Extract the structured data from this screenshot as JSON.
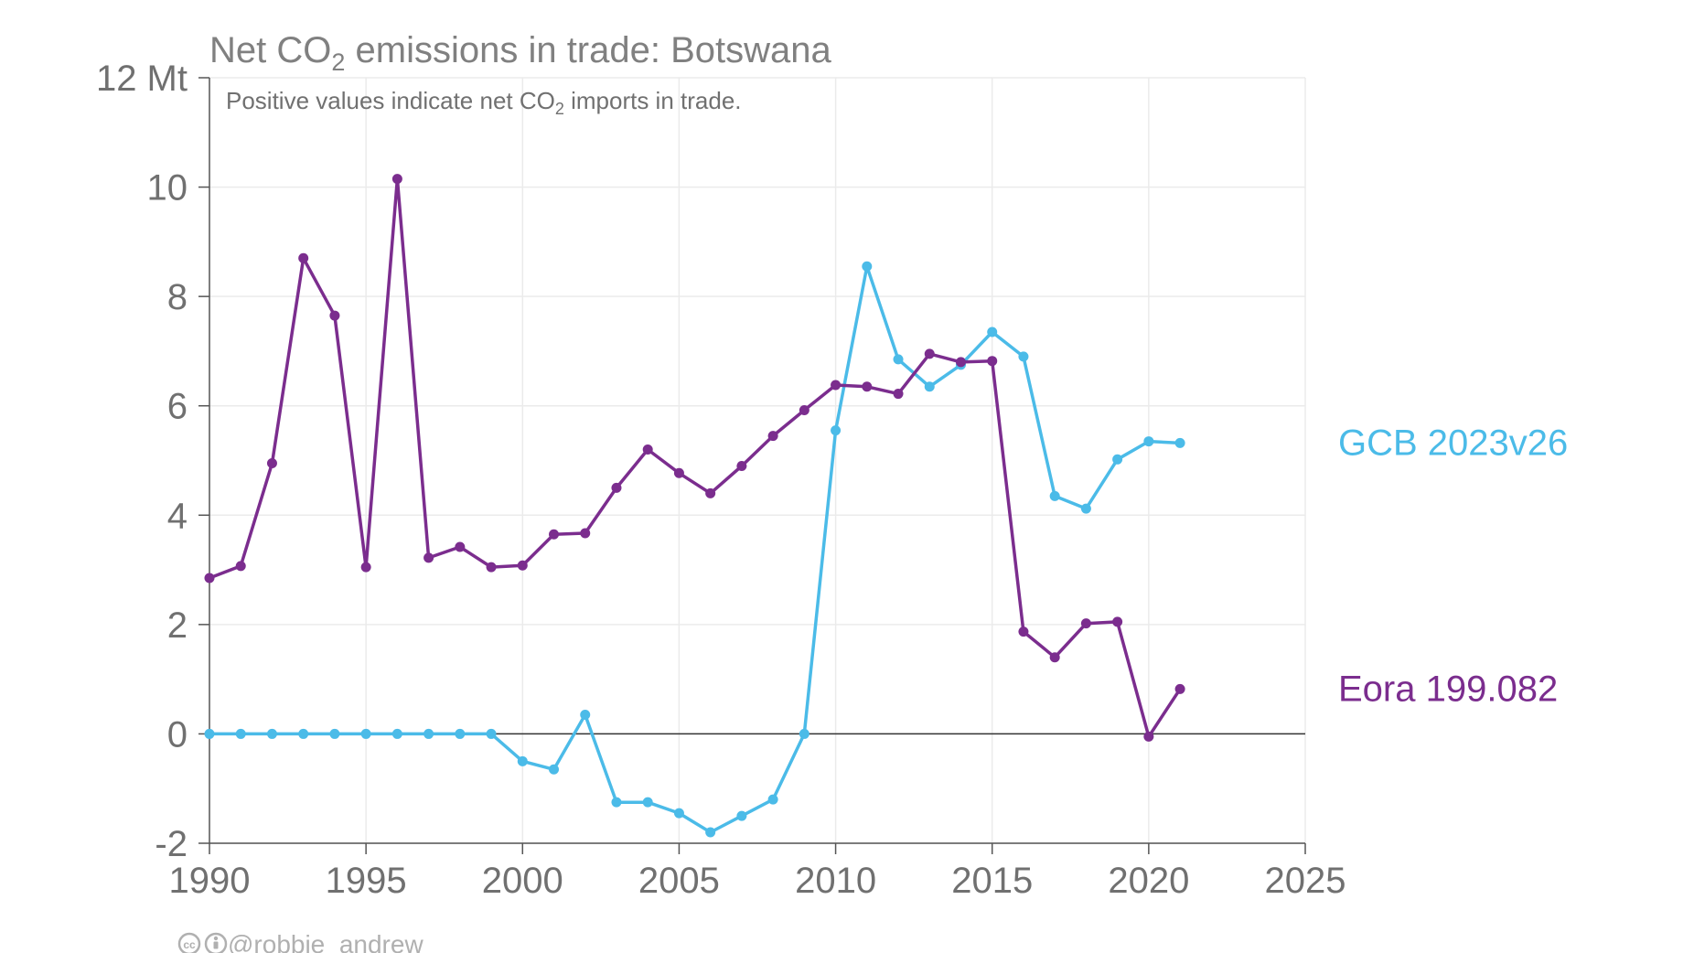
{
  "chart_data": {
    "type": "line",
    "title": {
      "prefix": "Net CO",
      "subscript": "2",
      "suffix": " emissions in trade: Botswana"
    },
    "subtitle": {
      "prefix": "Positive values indicate net CO",
      "subscript": "2",
      "suffix": " imports in trade."
    },
    "y_unit": "Mt",
    "xlim": [
      1990,
      2025
    ],
    "ylim": [
      -2,
      12
    ],
    "x_ticks": [
      1990,
      1995,
      2000,
      2005,
      2010,
      2015,
      2020,
      2025
    ],
    "y_ticks": [
      -2,
      0,
      2,
      4,
      6,
      8,
      10,
      12
    ],
    "y_tick_labels": [
      "-2",
      "0",
      "2",
      "4",
      "6",
      "8",
      "10",
      "12 Mt"
    ],
    "grid": true,
    "legend": "direct labels at right end of lines",
    "x": [
      1990,
      1991,
      1992,
      1993,
      1994,
      1995,
      1996,
      1997,
      1998,
      1999,
      2000,
      2001,
      2002,
      2003,
      2004,
      2005,
      2006,
      2007,
      2008,
      2009,
      2010,
      2011,
      2012,
      2013,
      2014,
      2015,
      2016,
      2017,
      2018,
      2019,
      2020,
      2021
    ],
    "series": [
      {
        "name": "GCB 2023v26",
        "color": "#4bbbe8",
        "values": [
          0.0,
          0.0,
          0.0,
          0.0,
          0.0,
          0.0,
          0.0,
          0.0,
          0.0,
          0.0,
          -0.5,
          -0.65,
          0.35,
          -1.25,
          -1.25,
          -1.45,
          -1.8,
          -1.5,
          -1.2,
          0.0,
          5.55,
          8.55,
          6.85,
          6.35,
          6.75,
          7.35,
          6.9,
          4.35,
          4.12,
          5.02,
          5.35,
          5.32
        ]
      },
      {
        "name": "Eora 199.082",
        "color": "#7b2d8e",
        "values": [
          2.85,
          3.07,
          4.95,
          8.7,
          7.65,
          3.05,
          10.15,
          3.22,
          3.42,
          3.05,
          3.08,
          3.65,
          3.67,
          4.5,
          5.2,
          4.77,
          4.4,
          4.9,
          5.45,
          5.92,
          6.38,
          6.35,
          6.22,
          6.95,
          6.8,
          6.82,
          1.87,
          1.4,
          2.02,
          2.05,
          -0.05,
          0.82
        ]
      }
    ]
  },
  "credit": {
    "icons": [
      "cc-icon",
      "by-icon"
    ],
    "handle": "@robbie_andrew"
  }
}
